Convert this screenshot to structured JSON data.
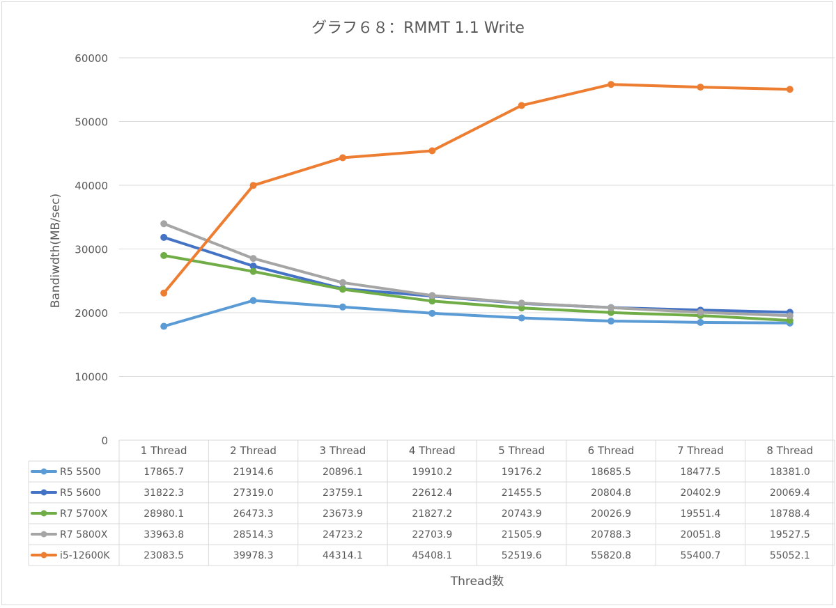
{
  "chart_data": {
    "type": "line",
    "title": "グラフ６８：RMMT 1.1 Write",
    "xlabel": "Thread数",
    "ylabel": "Bandiwdth(MB/sec)",
    "ylim": [
      0,
      60000
    ],
    "yticks": [
      0,
      10000,
      20000,
      30000,
      40000,
      50000,
      60000
    ],
    "grid": true,
    "legend": "data-table",
    "categories": [
      "1 Thread",
      "2 Thread",
      "3 Thread",
      "4 Thread",
      "5 Thread",
      "6 Thread",
      "7 Thread",
      "8 Thread"
    ],
    "series": [
      {
        "name": "R5 5500",
        "color": "#5b9bd5",
        "values": [
          17865.7,
          21914.6,
          20896.1,
          19910.2,
          19176.2,
          18685.5,
          18477.5,
          18381.0
        ],
        "labels": [
          "17865.7",
          "21914.6",
          "20896.1",
          "19910.2",
          "19176.2",
          "18685.5",
          "18477.5",
          "18381.0"
        ]
      },
      {
        "name": "R5 5600",
        "color": "#4472c4",
        "values": [
          31822.3,
          27319.0,
          23759.1,
          22612.4,
          21455.5,
          20804.8,
          20402.9,
          20069.4
        ],
        "labels": [
          "31822.3",
          "27319.0",
          "23759.1",
          "22612.4",
          "21455.5",
          "20804.8",
          "20402.9",
          "20069.4"
        ]
      },
      {
        "name": "R7 5700X",
        "color": "#70ad47",
        "values": [
          28980.1,
          26473.3,
          23673.9,
          21827.2,
          20743.9,
          20026.9,
          19551.4,
          18788.4
        ],
        "labels": [
          "28980.1",
          "26473.3",
          "23673.9",
          "21827.2",
          "20743.9",
          "20026.9",
          "19551.4",
          "18788.4"
        ]
      },
      {
        "name": "R7 5800X",
        "color": "#a5a5a5",
        "values": [
          33963.8,
          28514.3,
          24723.2,
          22703.9,
          21505.9,
          20788.3,
          20051.8,
          19527.5
        ],
        "labels": [
          "33963.8",
          "28514.3",
          "24723.2",
          "22703.9",
          "21505.9",
          "20788.3",
          "20051.8",
          "19527.5"
        ]
      },
      {
        "name": "i5-12600K",
        "color": "#ed7d31",
        "values": [
          23083.5,
          39978.3,
          44314.1,
          45408.1,
          52519.6,
          55820.8,
          55400.7,
          55052.1
        ],
        "labels": [
          "23083.5",
          "39978.3",
          "44314.1",
          "45408.1",
          "52519.6",
          "55820.8",
          "55400.7",
          "55052.1"
        ]
      }
    ]
  }
}
